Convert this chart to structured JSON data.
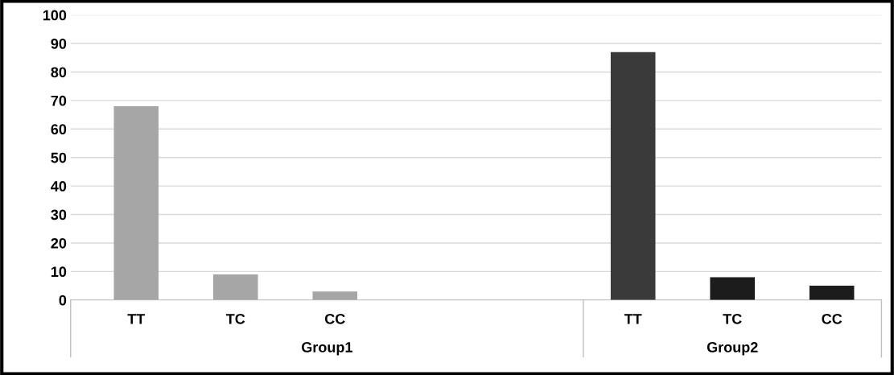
{
  "chart_data": {
    "type": "bar",
    "categories": [
      "TT",
      "TC",
      "CC",
      null,
      null,
      "TT",
      "TC",
      "CC"
    ],
    "values": [
      68,
      9,
      3,
      null,
      null,
      87,
      8,
      5
    ],
    "colors": [
      "#a6a6a6",
      "#a6a6a6",
      "#a6a6a6",
      "#a6a6a6",
      "#3a3a3a",
      "#3a3a3a",
      "#1c1c1c",
      "#1c1c1c"
    ],
    "annotations": [
      "Group1",
      "Group2"
    ],
    "ylim": [
      0,
      100
    ],
    "yticks": [
      0,
      10,
      20,
      30,
      40,
      50,
      60,
      70,
      80,
      90,
      100
    ],
    "grid": "y",
    "legend": false
  }
}
